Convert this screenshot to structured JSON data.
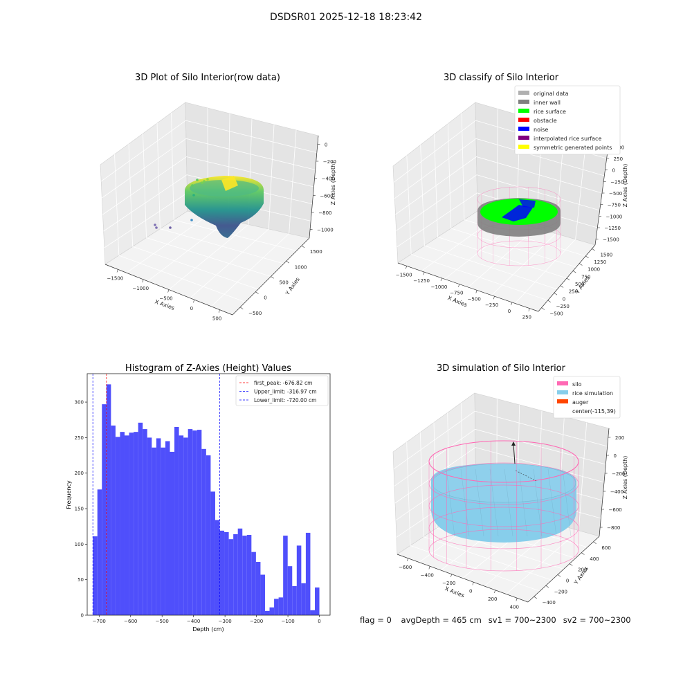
{
  "suptitle": "DSDSR01 2025-12-18 18:23:42",
  "colors": {
    "hist_bar": "#4f4ffb",
    "first_peak": "#ff0000",
    "limit": "#0000ff",
    "silo": "#ff69b4",
    "rice_sim": "#87ceeb",
    "auger": "#ff4500",
    "original": "#b0b0b0",
    "inner_wall": "#808080",
    "rice_surface": "#00ff00",
    "obstacle": "#ff0000",
    "noise": "#0000ff",
    "interp_rice": "#800080",
    "sym_points": "#ffff00"
  },
  "panel_raw": {
    "title": "3D Plot of Silo Interior(row data)",
    "x_label": "X Axies",
    "y_label": "Y Axies",
    "z_label": "Z Axies (Depth)",
    "x_ticks": [
      "−1500",
      "−1000",
      "−500",
      "0",
      "500"
    ],
    "y_ticks": [
      "−500",
      "0",
      "500",
      "1000",
      "1500"
    ],
    "z_ticks": [
      "0",
      "−200",
      "−400",
      "−600",
      "−800",
      "−1000"
    ]
  },
  "panel_classify": {
    "title": "3D classify of Silo Interior",
    "x_label": "X Axies",
    "y_label": "Y Axies",
    "z_label": "Z Axies (Depth)",
    "x_ticks": [
      "−1500",
      "−1250",
      "−1000",
      "−750",
      "−500",
      "−250",
      "0",
      "250"
    ],
    "y_ticks": [
      "−500",
      "−250",
      "0",
      "250",
      "500",
      "750",
      "1000",
      "1250",
      "1500"
    ],
    "z_ticks": [
      "500",
      "250",
      "0",
      "−250",
      "−500",
      "−750",
      "−1000",
      "−1250",
      "−1500"
    ],
    "legend": [
      {
        "label": "original data",
        "color": "#b0b0b0"
      },
      {
        "label": "inner wall",
        "color": "#808080"
      },
      {
        "label": "rice surface",
        "color": "#00ff00"
      },
      {
        "label": "obstacle",
        "color": "#ff0000"
      },
      {
        "label": "noise",
        "color": "#0000ff"
      },
      {
        "label": "interpolated rice surface",
        "color": "#800080"
      },
      {
        "label": "symmetric generated points",
        "color": "#ffff00"
      }
    ]
  },
  "panel_sim": {
    "title": "3D simulation of Silo Interior",
    "x_label": "X Axies",
    "y_label": "Y Axies",
    "z_label": "Z Axies (Depth)",
    "x_ticks": [
      "−600",
      "−400",
      "−200",
      "0",
      "200",
      "400"
    ],
    "y_ticks": [
      "−400",
      "−200",
      "0",
      "200",
      "400",
      "600"
    ],
    "z_ticks": [
      "200",
      "0",
      "−200",
      "−400",
      "−600",
      "−800"
    ],
    "legend": [
      {
        "label": "silo",
        "color": "#ff69b4"
      },
      {
        "label": "rice simulation",
        "color": "#87ceeb"
      },
      {
        "label": "auger",
        "color": "#ff4500"
      },
      {
        "label": "center(-115,39)",
        "color": ""
      }
    ]
  },
  "footer": {
    "flag": "flag = 0",
    "avg": "avgDepth = 465 cm",
    "sv1": "sv1 = 700~2300",
    "sv2": "sv2 = 700~2300"
  },
  "chart_data": [
    {
      "type": "bar",
      "title": "Histogram of Z-Axies (Height) Values",
      "xlabel": "Depth (cm)",
      "ylabel": "Frequency",
      "xlim": [
        -738,
        34
      ],
      "ylim": [
        0,
        340
      ],
      "x_ticks": [
        -700,
        -600,
        -500,
        -400,
        -300,
        -200,
        -100,
        0
      ],
      "x_tick_labels": [
        "−700",
        "−600",
        "−500",
        "−400",
        "−300",
        "−200",
        "−100",
        "0"
      ],
      "y_ticks": [
        0,
        50,
        100,
        150,
        200,
        250,
        300
      ],
      "bin_width": 14.4,
      "bin_start": -720,
      "values": [
        111,
        177,
        297,
        325,
        267,
        251,
        258,
        253,
        257,
        258,
        271,
        262,
        250,
        236,
        249,
        236,
        245,
        230,
        265,
        253,
        250,
        262,
        260,
        261,
        234,
        225,
        174,
        134,
        119,
        117,
        107,
        114,
        122,
        112,
        113,
        89,
        75,
        57,
        6,
        11,
        23,
        25,
        112,
        69,
        41,
        98,
        45,
        116,
        7,
        39
      ],
      "lines": [
        {
          "name": "first_peak: -676.82 cm",
          "x": -676.82,
          "color": "#ff0000"
        },
        {
          "name": "Upper_limit: -316.97 cm",
          "x": -316.97,
          "color": "#0000ff"
        },
        {
          "name": "Lower_limit: -720.00 cm",
          "x": -720.0,
          "color": "#0000ff"
        }
      ],
      "legend_position": "upper right"
    }
  ]
}
